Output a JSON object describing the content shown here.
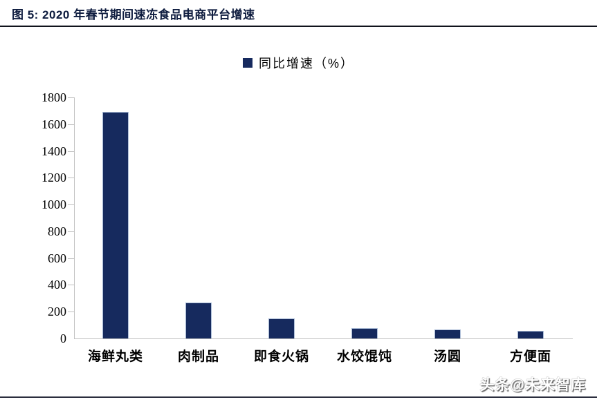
{
  "figure": {
    "title": "图 5:  2020 年春节期间速冻食品电商平台增速",
    "watermark": "头条@未来智库"
  },
  "colors": {
    "bar": "#162a5e",
    "bar_border": "#a9bbd6",
    "axis": "#bfbfbf",
    "title_rule": "#10131c",
    "footer_rule": "#2b2e3e",
    "title_text": "#0d1b3e"
  },
  "chart_data": {
    "type": "bar",
    "title": "",
    "legend": [
      "同比增速（%）"
    ],
    "legend_position": "top-center",
    "categories": [
      "海鲜丸类",
      "肉制品",
      "即食火锅",
      "水饺馄饨",
      "汤圆",
      "方便面"
    ],
    "values": [
      1690,
      270,
      150,
      75,
      65,
      57
    ],
    "xlabel": "",
    "ylabel": "",
    "ylim": [
      0,
      1800
    ],
    "yticks": [
      0,
      200,
      400,
      600,
      800,
      1000,
      1200,
      1400,
      1600,
      1800
    ],
    "grid": false
  }
}
